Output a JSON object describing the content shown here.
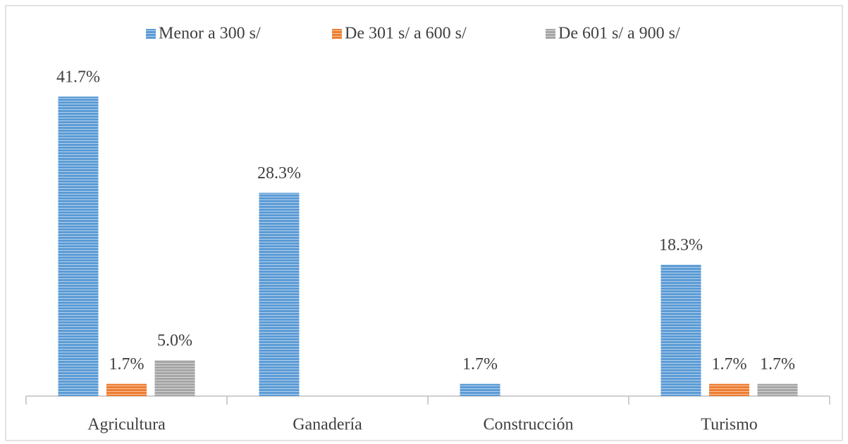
{
  "chart_data": {
    "type": "bar",
    "categories": [
      "Agricultura",
      "Ganadería",
      "Construcción",
      "Turismo"
    ],
    "series": [
      {
        "name": "Menor a 300 s/",
        "color": "#5b9bd5",
        "values": [
          41.7,
          28.3,
          1.7,
          18.3
        ],
        "value_labels": [
          "41.7%",
          "28.3%",
          "1.7%",
          "18.3%"
        ]
      },
      {
        "name": "De 301 s/ a 600 s/",
        "color": "#ed7d31",
        "values": [
          1.7,
          null,
          null,
          1.7
        ],
        "value_labels": [
          "1.7%",
          null,
          null,
          "1.7%"
        ]
      },
      {
        "name": "De 601 s/ a 900 s/",
        "color": "#a5a5a5",
        "values": [
          5.0,
          null,
          null,
          1.7
        ],
        "value_labels": [
          "5.0%",
          null,
          null,
          "1.7%"
        ]
      }
    ],
    "legend": "top"
  }
}
